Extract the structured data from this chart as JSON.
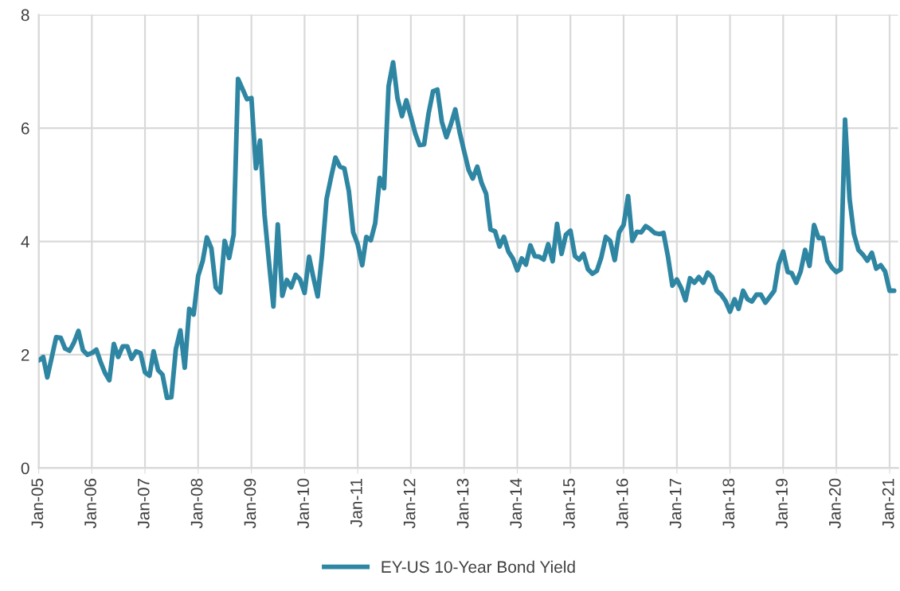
{
  "chart_data": {
    "type": "line",
    "x": [
      "2005-01",
      "2005-02",
      "2005-03",
      "2005-04",
      "2005-05",
      "2005-06",
      "2005-07",
      "2005-08",
      "2005-09",
      "2005-10",
      "2005-11",
      "2005-12",
      "2006-01",
      "2006-02",
      "2006-03",
      "2006-04",
      "2006-05",
      "2006-06",
      "2006-07",
      "2006-08",
      "2006-09",
      "2006-10",
      "2006-11",
      "2006-12",
      "2007-01",
      "2007-02",
      "2007-03",
      "2007-04",
      "2007-05",
      "2007-06",
      "2007-07",
      "2007-08",
      "2007-09",
      "2007-10",
      "2007-11",
      "2007-12",
      "2008-01",
      "2008-02",
      "2008-03",
      "2008-04",
      "2008-05",
      "2008-06",
      "2008-07",
      "2008-08",
      "2008-09",
      "2008-10",
      "2008-11",
      "2008-12",
      "2009-01",
      "2009-02",
      "2009-03",
      "2009-04",
      "2009-05",
      "2009-06",
      "2009-07",
      "2009-08",
      "2009-09",
      "2009-10",
      "2009-11",
      "2009-12",
      "2010-01",
      "2010-02",
      "2010-03",
      "2010-04",
      "2010-05",
      "2010-06",
      "2010-07",
      "2010-08",
      "2010-09",
      "2010-10",
      "2010-11",
      "2010-12",
      "2011-01",
      "2011-02",
      "2011-03",
      "2011-04",
      "2011-05",
      "2011-06",
      "2011-07",
      "2011-08",
      "2011-09",
      "2011-10",
      "2011-11",
      "2011-12",
      "2012-01",
      "2012-02",
      "2012-03",
      "2012-04",
      "2012-05",
      "2012-06",
      "2012-07",
      "2012-08",
      "2012-09",
      "2012-10",
      "2012-11",
      "2012-12",
      "2013-01",
      "2013-02",
      "2013-03",
      "2013-04",
      "2013-05",
      "2013-06",
      "2013-07",
      "2013-08",
      "2013-09",
      "2013-10",
      "2013-11",
      "2013-12",
      "2014-01",
      "2014-02",
      "2014-03",
      "2014-04",
      "2014-05",
      "2014-06",
      "2014-07",
      "2014-08",
      "2014-09",
      "2014-10",
      "2014-11",
      "2014-12",
      "2015-01",
      "2015-02",
      "2015-03",
      "2015-04",
      "2015-05",
      "2015-06",
      "2015-07",
      "2015-08",
      "2015-09",
      "2015-10",
      "2015-11",
      "2015-12",
      "2016-01",
      "2016-02",
      "2016-03",
      "2016-04",
      "2016-05",
      "2016-06",
      "2016-07",
      "2016-08",
      "2016-09",
      "2016-10",
      "2016-11",
      "2016-12",
      "2017-01",
      "2017-02",
      "2017-03",
      "2017-04",
      "2017-05",
      "2017-06",
      "2017-07",
      "2017-08",
      "2017-09",
      "2017-10",
      "2017-11",
      "2017-12",
      "2018-01",
      "2018-02",
      "2018-03",
      "2018-04",
      "2018-05",
      "2018-06",
      "2018-07",
      "2018-08",
      "2018-09",
      "2018-10",
      "2018-11",
      "2018-12",
      "2019-01",
      "2019-02",
      "2019-03",
      "2019-04",
      "2019-05",
      "2019-06",
      "2019-07",
      "2019-08",
      "2019-09",
      "2019-10",
      "2019-11",
      "2019-12",
      "2020-01",
      "2020-02",
      "2020-03",
      "2020-04",
      "2020-05",
      "2020-06",
      "2020-07",
      "2020-08",
      "2020-09",
      "2020-10",
      "2020-11",
      "2020-12",
      "2021-01",
      "2021-02"
    ],
    "series": [
      {
        "name": "EY-US 10-Year Bond Yield",
        "color": "#2e86a3",
        "values": [
          1.9,
          1.96,
          1.6,
          1.96,
          2.31,
          2.3,
          2.11,
          2.07,
          2.22,
          2.42,
          2.08,
          2.0,
          2.03,
          2.09,
          1.88,
          1.68,
          1.55,
          2.19,
          1.96,
          2.15,
          2.15,
          1.93,
          2.06,
          2.03,
          1.69,
          1.63,
          2.06,
          1.73,
          1.65,
          1.24,
          1.25,
          2.1,
          2.43,
          1.77,
          2.81,
          2.71,
          3.39,
          3.65,
          4.07,
          3.88,
          3.19,
          3.1,
          4.01,
          3.71,
          4.12,
          6.87,
          6.69,
          6.51,
          6.53,
          5.29,
          5.78,
          4.47,
          3.65,
          2.85,
          4.3,
          3.04,
          3.32,
          3.19,
          3.41,
          3.33,
          3.09,
          3.73,
          3.38,
          3.03,
          3.77,
          4.75,
          5.12,
          5.48,
          5.32,
          5.29,
          4.89,
          4.16,
          3.95,
          3.58,
          4.08,
          4.02,
          4.32,
          5.12,
          4.94,
          6.74,
          7.16,
          6.53,
          6.21,
          6.49,
          6.2,
          5.9,
          5.7,
          5.71,
          6.25,
          6.65,
          6.68,
          6.11,
          5.84,
          6.06,
          6.33,
          5.93,
          5.59,
          5.26,
          5.11,
          5.32,
          5.03,
          4.84,
          4.21,
          4.18,
          3.91,
          4.08,
          3.82,
          3.7,
          3.49,
          3.7,
          3.59,
          3.93,
          3.74,
          3.73,
          3.68,
          3.95,
          3.65,
          4.31,
          3.78,
          4.12,
          4.19,
          3.74,
          3.68,
          3.78,
          3.51,
          3.43,
          3.48,
          3.72,
          4.08,
          4.01,
          3.67,
          4.16,
          4.29,
          4.8,
          4.01,
          4.17,
          4.16,
          4.27,
          4.22,
          4.15,
          4.13,
          4.15,
          3.73,
          3.22,
          3.33,
          3.17,
          2.96,
          3.35,
          3.27,
          3.37,
          3.27,
          3.45,
          3.37,
          3.13,
          3.06,
          2.95,
          2.76,
          2.98,
          2.81,
          3.13,
          2.98,
          2.94,
          3.06,
          3.06,
          2.92,
          3.02,
          3.13,
          3.6,
          3.82,
          3.46,
          3.44,
          3.27,
          3.47,
          3.85,
          3.57,
          4.29,
          4.06,
          4.06,
          3.66,
          3.54,
          3.46,
          3.51,
          6.15,
          4.75,
          4.13,
          3.85,
          3.77,
          3.66,
          3.8,
          3.52,
          3.58,
          3.47,
          3.13,
          3.13
        ]
      }
    ],
    "xlim": [
      "2005-01",
      "2021-03"
    ],
    "xticks": [
      {
        "value": "2005-01",
        "label": "Jan-05"
      },
      {
        "value": "2006-01",
        "label": "Jan-06"
      },
      {
        "value": "2007-01",
        "label": "Jan-07"
      },
      {
        "value": "2008-01",
        "label": "Jan-08"
      },
      {
        "value": "2009-01",
        "label": "Jan-09"
      },
      {
        "value": "2010-01",
        "label": "Jan-10"
      },
      {
        "value": "2011-01",
        "label": "Jan-11"
      },
      {
        "value": "2012-01",
        "label": "Jan-12"
      },
      {
        "value": "2013-01",
        "label": "Jan-13"
      },
      {
        "value": "2014-01",
        "label": "Jan-14"
      },
      {
        "value": "2015-01",
        "label": "Jan-15"
      },
      {
        "value": "2016-01",
        "label": "Jan-16"
      },
      {
        "value": "2017-01",
        "label": "Jan-17"
      },
      {
        "value": "2018-01",
        "label": "Jan-18"
      },
      {
        "value": "2019-01",
        "label": "Jan-19"
      },
      {
        "value": "2020-01",
        "label": "Jan-20"
      },
      {
        "value": "2021-01",
        "label": "Jan-21"
      }
    ],
    "ylim": [
      0,
      8
    ],
    "yticks": [
      0,
      2,
      4,
      6,
      8
    ],
    "grid": true,
    "legend": "bottom",
    "marker": "none",
    "line_style": "solid"
  }
}
